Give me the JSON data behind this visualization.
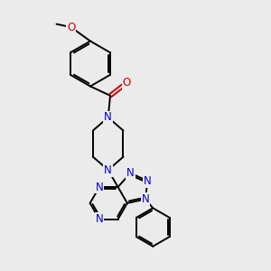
{
  "bg_color": "#ebebeb",
  "bond_color": "#000000",
  "n_color": "#0000cc",
  "o_color": "#cc0000",
  "bond_width": 1.4,
  "font_size": 8.5,
  "fig_size": [
    3.0,
    3.0
  ],
  "dpi": 100,
  "xlim": [
    0,
    10
  ],
  "ylim": [
    0,
    10
  ]
}
